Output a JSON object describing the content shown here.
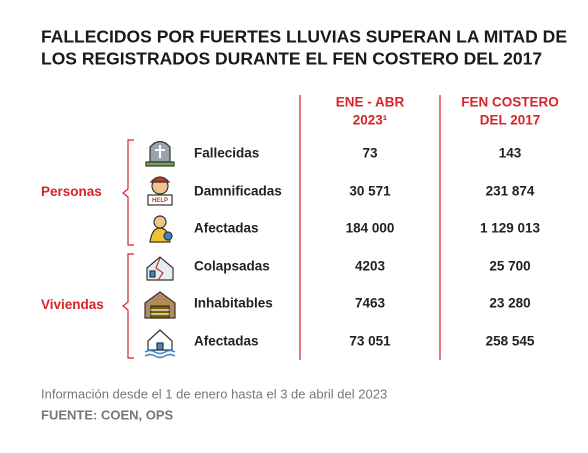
{
  "header": {
    "title_lines": [
      "FALLECIDOS POR FUERTES LLUVIAS SUPERAN LA MITAD DE",
      "LOS REGISTRADOS DURANTE EL FEN COSTERO DEL 2017"
    ]
  },
  "table": {
    "columns": [
      [
        "ENE - ABR",
        "2023¹"
      ],
      [
        "FEN COSTERO",
        "DEL 2017"
      ]
    ],
    "groups": [
      {
        "label": "Personas",
        "rows": [
          [
            "Fallecidas",
            "73",
            "143"
          ],
          [
            "Damnificadas",
            "30 571",
            "231 874"
          ],
          [
            "Afectadas",
            "184 000",
            "1 129 013"
          ]
        ]
      },
      {
        "label": "Viviendas",
        "rows": [
          [
            "Colapsadas",
            "4203",
            "25 700"
          ],
          [
            "Inhabitables",
            "7463",
            "23 280"
          ],
          [
            "Afectadas",
            "73 051",
            "258 545"
          ]
        ]
      }
    ]
  },
  "footer": {
    "note": "Información desde el 1 de enero hasta el 3 de abril del 2023",
    "source": "FUENTE: COEN, OPS"
  }
}
